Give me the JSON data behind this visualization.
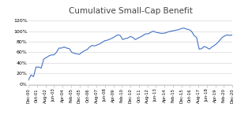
{
  "title": "Cumulative Small-Cap Benefit",
  "title_fontsize": 7.5,
  "line_color": "#4472C4",
  "line_width": 0.8,
  "background_color": "#ffffff",
  "ylim": [
    -0.02,
    1.28
  ],
  "yticks": [
    0.0,
    0.2,
    0.4,
    0.6,
    0.8,
    1.0,
    1.2
  ],
  "ytick_labels": [
    "0%",
    "20%",
    "40%",
    "60%",
    "80%",
    "100%",
    "120%"
  ],
  "x_labels": [
    "Dec-00",
    "Oct-01",
    "Aug-02",
    "Jun-03",
    "Apr-04",
    "Feb-05",
    "Dec-05",
    "Oct-06",
    "Aug-07",
    "Jun-08",
    "Apr-09",
    "Feb-10",
    "Dec-10",
    "Oct-11",
    "Aug-12",
    "Jun-13",
    "Apr-14",
    "Feb-15",
    "Dec-15",
    "Oct-16",
    "Aug-17",
    "Jun-18",
    "Apr-19",
    "Feb-20",
    "Dec-20"
  ],
  "y_values": [
    0.07,
    0.17,
    0.14,
    0.32,
    0.32,
    0.3,
    0.47,
    0.5,
    0.53,
    0.55,
    0.55,
    0.6,
    0.68,
    0.68,
    0.7,
    0.68,
    0.67,
    0.6,
    0.58,
    0.57,
    0.56,
    0.6,
    0.63,
    0.65,
    0.7,
    0.73,
    0.72,
    0.74,
    0.76,
    0.79,
    0.82,
    0.83,
    0.85,
    0.87,
    0.9,
    0.93,
    0.92,
    0.84,
    0.86,
    0.87,
    0.9,
    0.88,
    0.84,
    0.87,
    0.89,
    0.92,
    0.95,
    0.95,
    0.98,
    1.0,
    0.98,
    0.97,
    0.96,
    0.96,
    0.97,
    0.99,
    1.0,
    1.01,
    1.02,
    1.03,
    1.05,
    1.06,
    1.04,
    1.03,
    1.0,
    0.92,
    0.88,
    0.66,
    0.67,
    0.71,
    0.69,
    0.66,
    0.7,
    0.73,
    0.77,
    0.82,
    0.88,
    0.91,
    0.93,
    0.92,
    0.93
  ]
}
